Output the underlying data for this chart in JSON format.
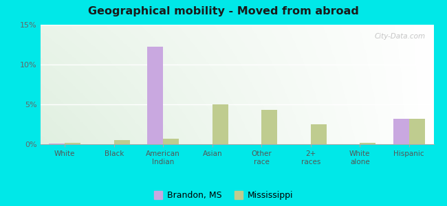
{
  "title": "Geographical mobility - Moved from abroad",
  "categories": [
    "White",
    "Black",
    "American\nIndian",
    "Asian",
    "Other\nrace",
    "2+\nraces",
    "White\nalone",
    "Hispanic"
  ],
  "brandon_ms": [
    0.1,
    0.0,
    12.2,
    0.0,
    0.0,
    0.0,
    0.0,
    3.2
  ],
  "mississippi": [
    0.2,
    0.5,
    0.7,
    5.0,
    4.3,
    2.5,
    0.2,
    3.2
  ],
  "brandon_color": "#c9a8e0",
  "mississippi_color": "#bfcc8f",
  "ylim": [
    0,
    15
  ],
  "yticks": [
    0,
    5,
    10,
    15
  ],
  "ytick_labels": [
    "0%",
    "5%",
    "10%",
    "15%"
  ],
  "outer_background": "#00e8e8",
  "legend_brandon": "Brandon, MS",
  "legend_mississippi": "Mississippi",
  "bar_width": 0.32
}
